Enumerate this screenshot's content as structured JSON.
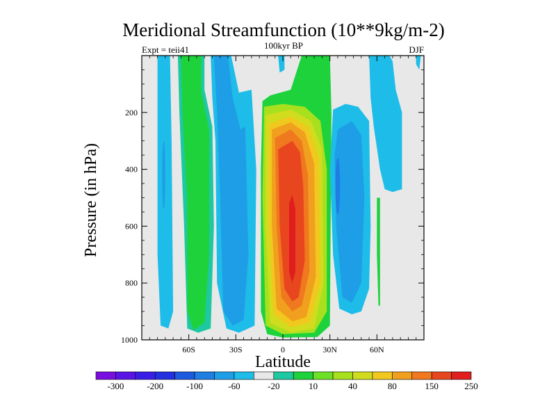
{
  "chart_data": {
    "type": "heatmap",
    "title": "Meridional Streamfunction (10**9kg/m-2)",
    "left_subtitle": "Expt = teii41",
    "center_subtitle": "100kyr BP",
    "right_subtitle": "DJF",
    "xlabel": "Latitude",
    "ylabel": "Pressure (in hPa)",
    "xlim": [
      -90,
      90
    ],
    "ylim": [
      1000,
      0
    ],
    "x_ticks": [
      {
        "value": -60,
        "label": "60S"
      },
      {
        "value": -30,
        "label": "30S"
      },
      {
        "value": 0,
        "label": "0"
      },
      {
        "value": 30,
        "label": "30N"
      },
      {
        "value": 60,
        "label": "60N"
      }
    ],
    "y_ticks": [
      {
        "value": 200,
        "label": "200"
      },
      {
        "value": 400,
        "label": "400"
      },
      {
        "value": 600,
        "label": "600"
      },
      {
        "value": 800,
        "label": "800"
      },
      {
        "value": 1000,
        "label": "1000"
      }
    ],
    "background_color": "#e8e8e8",
    "colorbar": {
      "colors": [
        "#7a0ee0",
        "#5a14e6",
        "#3a1ee8",
        "#2430e0",
        "#1e5ae0",
        "#1e7ee2",
        "#1e9ee6",
        "#1ebce8",
        "#e8e8e8",
        "#1ec8a0",
        "#1ed23c",
        "#6ee028",
        "#a8e01e",
        "#d2dc1e",
        "#f0c81e",
        "#f0a01e",
        "#f0781e",
        "#e8461e",
        "#e01e1e"
      ],
      "labels": [
        "-300",
        "-200",
        "-100",
        "-60",
        "-20",
        "10",
        "40",
        "80",
        "150",
        "250"
      ],
      "levels": [
        -300,
        -250,
        -200,
        -150,
        -100,
        -80,
        -60,
        -40,
        -20,
        0,
        10,
        20,
        40,
        60,
        80,
        100,
        150,
        200,
        250
      ]
    },
    "features": [
      {
        "name": "sh-polar-cell",
        "lat_min": -80,
        "lat_max": -70,
        "p_top": 0,
        "p_bottom": 950,
        "value": -20
      },
      {
        "name": "sh-ferrel-band",
        "lat_min": -65,
        "lat_max": -48,
        "p_top": 0,
        "p_bottom": 960,
        "value": 20
      },
      {
        "name": "sh-subtropical-negative",
        "lat_min": -45,
        "lat_max": -18,
        "p_top": 0,
        "p_bottom": 970,
        "value": -20
      },
      {
        "name": "hadley-cell",
        "lat_min": -13,
        "lat_max": 30,
        "p_top": 0,
        "p_bottom": 990,
        "value": 250
      },
      {
        "name": "nh-ferrel-negative",
        "lat_min": 30,
        "lat_max": 55,
        "p_top": 180,
        "p_bottom": 910,
        "value": -40
      },
      {
        "name": "nh-polar-patch",
        "lat_min": 60,
        "lat_max": 62,
        "p_top": 500,
        "p_bottom": 880,
        "value": 10
      },
      {
        "name": "nh-polar-strip",
        "lat_min": 55,
        "lat_max": 76,
        "p_top": 0,
        "p_bottom": 480,
        "value": -20
      }
    ]
  }
}
